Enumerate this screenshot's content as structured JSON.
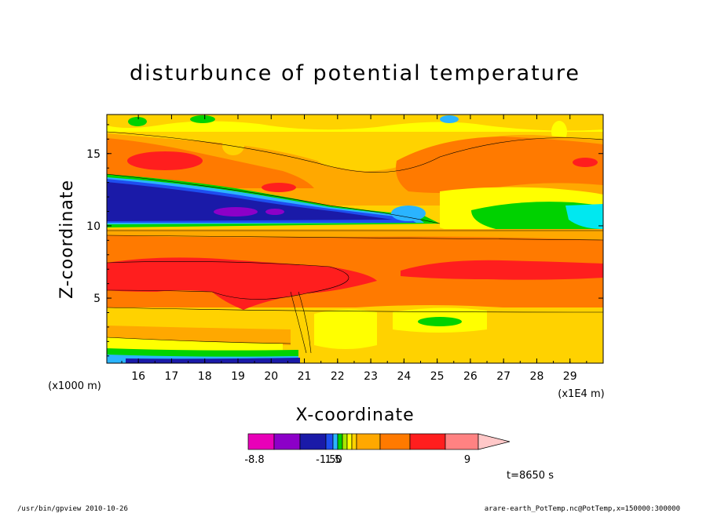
{
  "chart_data": {
    "type": "heatmap",
    "title": "disturbunce of potential temperature",
    "xlabel": "X-coordinate",
    "ylabel": "Z-coordinate",
    "x_scale_label": "(x1000 m)",
    "x_unit_label": "(x1E4 m)",
    "xlim": [
      15.05,
      30.0
    ],
    "ylim": [
      0.5,
      17.7
    ],
    "x_ticks": [
      "16",
      "17",
      "18",
      "19",
      "20",
      "21",
      "22",
      "23",
      "24",
      "25",
      "26",
      "27",
      "28",
      "29"
    ],
    "y_ticks": [
      "5",
      "10",
      "15"
    ],
    "colorbar": {
      "labels": [
        "-8.8",
        "-1.50",
        "1.5",
        "9"
      ],
      "colors": [
        "#e800b8",
        "#8c00c8",
        "#1a1aa8",
        "#1e4ef0",
        "#2ab4ff",
        "#00d200",
        "#a8e600",
        "#ffff00",
        "#ffd200",
        "#ffa800",
        "#ff7a00",
        "#ff1e1e",
        "#ff8282",
        "#ffc8c8"
      ]
    },
    "time_label": "t=8650 s"
  },
  "footer": {
    "left": "/usr/bin/gpview   2010-10-26",
    "right": "arare-earth_PotTemp.nc@PotTemp,x=150000:300000"
  }
}
